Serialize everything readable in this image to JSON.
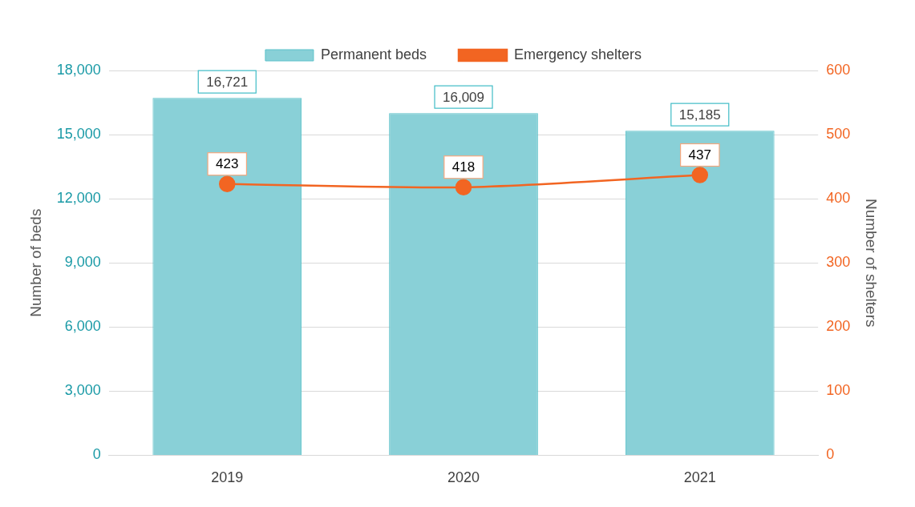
{
  "chart_data": {
    "type": "bar",
    "categories": [
      "2019",
      "2020",
      "2021"
    ],
    "series": [
      {
        "name": "Permanent beds",
        "type": "bar",
        "color": "#89d0d7",
        "values": [
          16721,
          16009,
          15185
        ],
        "value_labels": [
          "16,721",
          "16,009",
          "15,185"
        ]
      },
      {
        "name": "Emergency shelters",
        "type": "line",
        "color": "#f26522",
        "marker": "circle",
        "axis": "y2",
        "values": [
          423,
          418,
          437
        ]
      }
    ],
    "ylabel": "Number of beds",
    "y2label": "Number of shelters",
    "ylim": [
      0,
      18000
    ],
    "yticks": [
      0,
      {
        "value": 3000,
        "label": "3,000"
      },
      {
        "value": 6000,
        "label": "6,000"
      },
      {
        "value": 9000,
        "label": "9,000"
      },
      {
        "value": 12000,
        "label": "12,000"
      },
      {
        "value": 15000,
        "label": "15,000"
      },
      {
        "value": 18000,
        "label": "18,000"
      }
    ],
    "y2lim": [
      0,
      600
    ],
    "y2ticks": [
      0,
      100,
      200,
      300,
      400,
      500,
      600
    ],
    "grid": true,
    "legend": "top",
    "data_labels": true
  }
}
